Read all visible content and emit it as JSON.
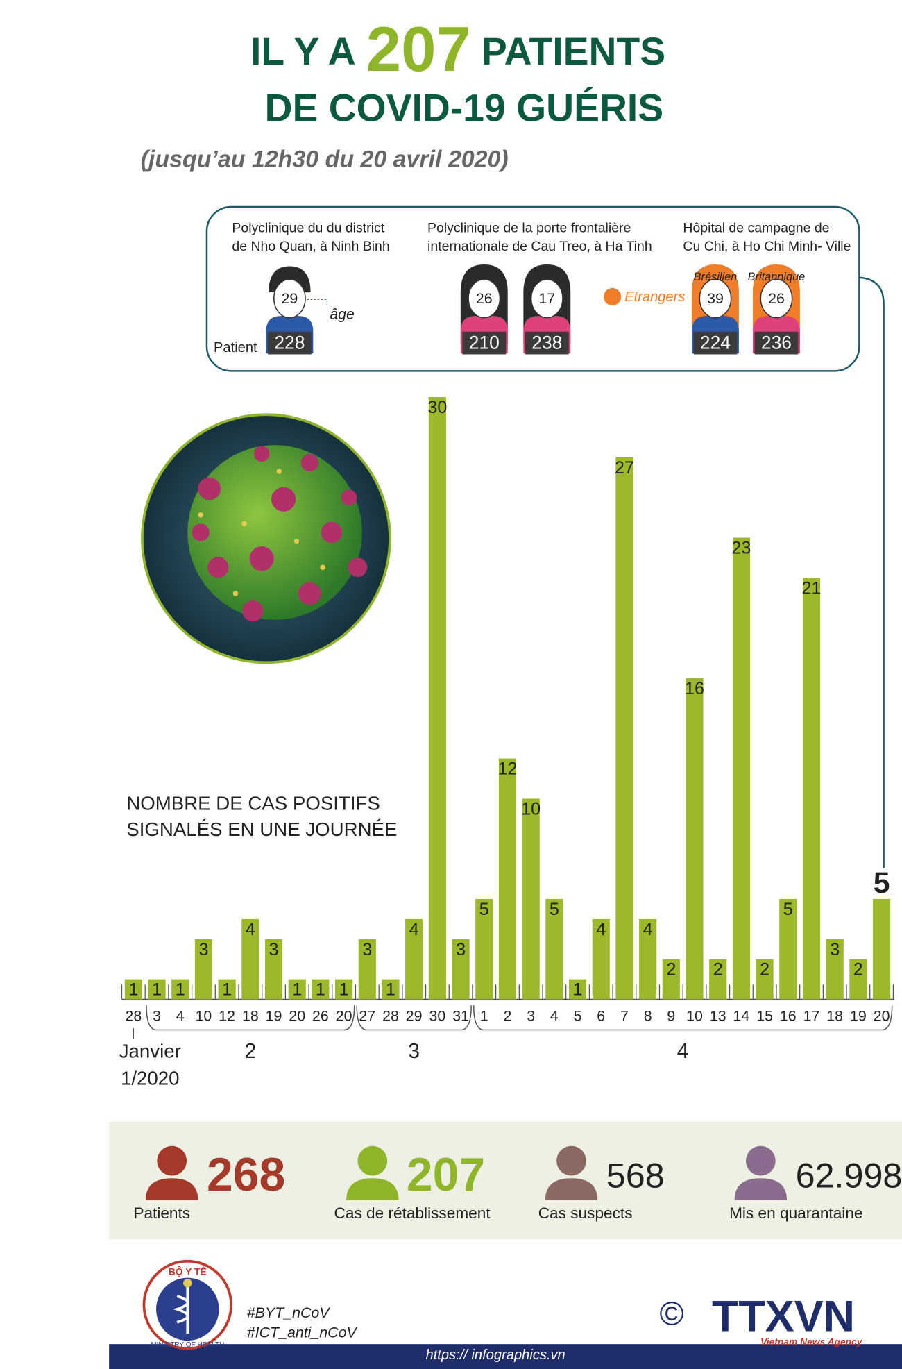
{
  "header": {
    "pre": "IL Y A",
    "number": "207",
    "post": "PATIENTS",
    "line2": "DE COVID-19 GUÉRIS",
    "subtitle": "(jusqu’au 12h30 du 20 avril 2020)"
  },
  "clinics": [
    {
      "lines": [
        "Polyclinique du du district",
        "de Nho Quan, à Ninh Binh"
      ],
      "patients": [
        {
          "age": 29,
          "id": 228
        }
      ]
    },
    {
      "lines": [
        "Polyclinique de  la porte frontalière",
        "internationale de Cau Treo, à Ha Tinh"
      ],
      "patients": [
        {
          "age": 26,
          "id": 210
        },
        {
          "age": 17,
          "id": 238
        }
      ]
    },
    {
      "lines": [
        "Hôpital de campagne de",
        "Cu Chi, à Ho Chi Minh- Ville"
      ],
      "patients": [
        {
          "age": 39,
          "id": 224,
          "tag": "Brésilien"
        },
        {
          "age": 26,
          "id": 236,
          "tag": "Britannique"
        }
      ]
    }
  ],
  "age_label": "âge",
  "patient_label": "Patient",
  "foreign_label": "Etrangers",
  "chart_data": {
    "type": "bar",
    "title": [
      "NOMBRE DE CAS POSITIFS",
      "SIGNALÉS EN UNE JOURNÉE"
    ],
    "color": "#9cb82b",
    "ylim": [
      0,
      30
    ],
    "groups": [
      {
        "label": "Janvier",
        "sublabel": "1/2020",
        "categories": [
          "28"
        ],
        "values": [
          1
        ]
      },
      {
        "label": "2",
        "categories": [
          "3",
          "4",
          "10",
          "12",
          "18",
          "19",
          "20",
          "26",
          "20"
        ],
        "values": [
          1,
          1,
          3,
          1,
          4,
          3,
          1,
          1,
          1
        ]
      },
      {
        "label": "3",
        "categories": [
          "27",
          "28",
          "29",
          "30",
          "31"
        ],
        "values": [
          3,
          1,
          4,
          30,
          3
        ]
      },
      {
        "label": "4",
        "categories": [
          "1",
          "2",
          "3",
          "4",
          "5",
          "6",
          "7",
          "8",
          "9",
          "10",
          "13",
          "14",
          "15",
          "16",
          "17",
          "18",
          "19",
          "20"
        ],
        "values": [
          5,
          12,
          10,
          5,
          1,
          4,
          27,
          4,
          2,
          16,
          2,
          23,
          2,
          5,
          21,
          3,
          2,
          5
        ]
      }
    ]
  },
  "stats": [
    {
      "value": "268",
      "label": "Patients",
      "color": "#a63a2a"
    },
    {
      "value": "207",
      "label": "Cas de rétablissement",
      "color": "#8fb62b"
    },
    {
      "value": "568",
      "label": "Cas suspects",
      "color": "#8a6a63"
    },
    {
      "value": "62.998",
      "label": "Mis en quarantaine",
      "color": "#8a6d8e"
    }
  ],
  "footer": {
    "ministry": "BỘ Y TẾ",
    "ministry_en": "MINISTRY OF HEALTH",
    "tags": [
      "#BYT_nCoV",
      "#ICT_anti_nCoV"
    ],
    "copyright": "©",
    "agency": "TTXVN",
    "agency_en": "Vietnam News Agency",
    "url": "https:// infographics.vn"
  }
}
